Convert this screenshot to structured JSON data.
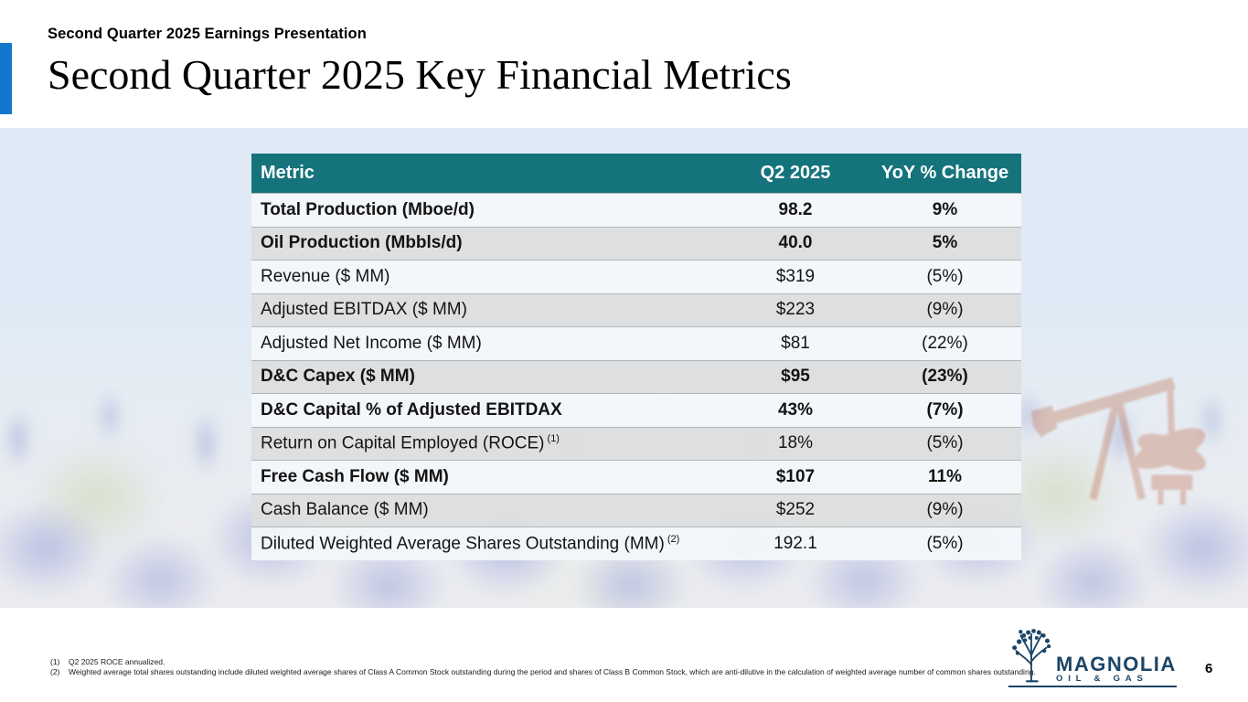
{
  "slide": {
    "eyebrow": "Second Quarter 2025 Earnings Presentation",
    "title": "Second Quarter 2025 Key Financial Metrics",
    "page_number": "6"
  },
  "table": {
    "columns": [
      "Metric",
      "Q2 2025",
      "YoY % Change"
    ],
    "rows": [
      {
        "metric": "Total Production (Mboe/d)",
        "superscript": "",
        "q2_2025": "98.2",
        "yoy_change": "9%",
        "bold": true
      },
      {
        "metric": "Oil Production (Mbbls/d)",
        "superscript": "",
        "q2_2025": "40.0",
        "yoy_change": "5%",
        "bold": true
      },
      {
        "metric": "Revenue ($ MM)",
        "superscript": "",
        "q2_2025": "$319",
        "yoy_change": "(5%)",
        "bold": false
      },
      {
        "metric": "Adjusted EBITDAX ($ MM)",
        "superscript": "",
        "q2_2025": "$223",
        "yoy_change": "(9%)",
        "bold": false
      },
      {
        "metric": "Adjusted Net Income ($ MM)",
        "superscript": "",
        "q2_2025": "$81",
        "yoy_change": "(22%)",
        "bold": false
      },
      {
        "metric": "D&C Capex ($ MM)",
        "superscript": "",
        "q2_2025": "$95",
        "yoy_change": "(23%)",
        "bold": true
      },
      {
        "metric": "D&C Capital % of Adjusted EBITDAX",
        "superscript": "",
        "q2_2025": "43%",
        "yoy_change": "(7%)",
        "bold": true
      },
      {
        "metric": "Return on Capital Employed (ROCE)",
        "superscript": "(1)",
        "q2_2025": "18%",
        "yoy_change": "(5%)",
        "bold": false
      },
      {
        "metric": "Free Cash Flow ($ MM)",
        "superscript": "",
        "q2_2025": "$107",
        "yoy_change": "11%",
        "bold": true
      },
      {
        "metric": "Cash Balance ($ MM)",
        "superscript": "",
        "q2_2025": "$252",
        "yoy_change": "(9%)",
        "bold": false
      },
      {
        "metric": "Diluted Weighted Average Shares Outstanding (MM)",
        "superscript": "(2)",
        "q2_2025": "192.1",
        "yoy_change": "(5%)",
        "bold": false
      }
    ]
  },
  "footnotes": [
    {
      "marker": "(1)",
      "text": "Q2 2025 ROCE annualized."
    },
    {
      "marker": "(2)",
      "text": "Weighted average total shares outstanding include diluted weighted average shares of Class A Common Stock outstanding during the period and shares of Class B Common Stock, which are anti-dilutive in the calculation of weighted average number of common shares outstanding."
    }
  ],
  "logo": {
    "name": "MAGNOLIA",
    "subtitle": "OIL & GAS"
  },
  "colors": {
    "table_header_teal": "#15737c",
    "accent_bar_blue": "#1377cd",
    "logo_navy": "#1c4566",
    "row_light": "#f3f7fa",
    "row_gray": "#dddedf",
    "pumpjack_rust": "#b85c35"
  }
}
